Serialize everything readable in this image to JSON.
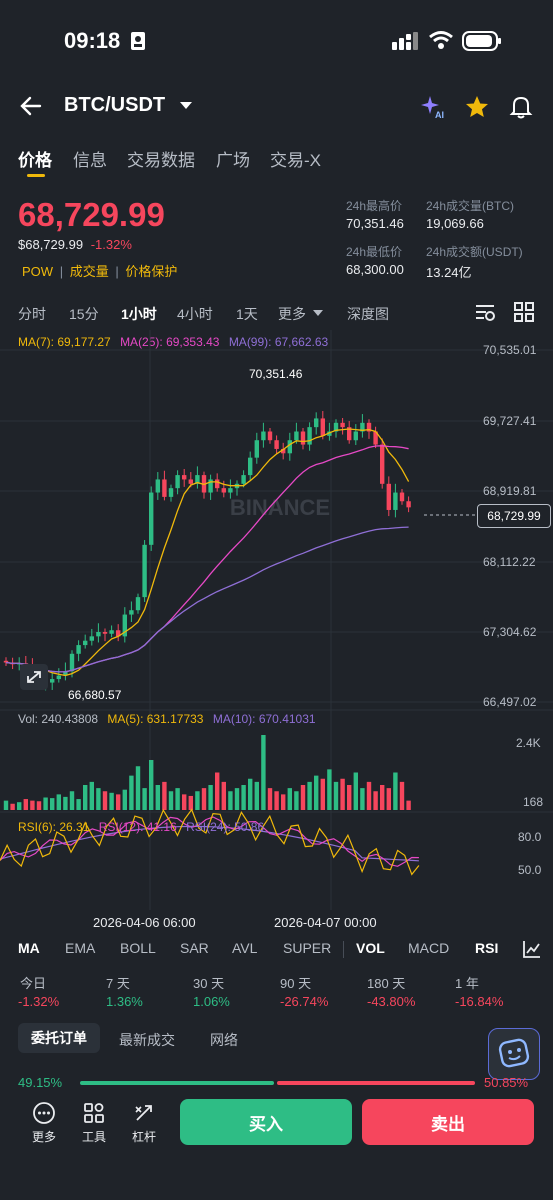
{
  "status": {
    "time": "09:18"
  },
  "header": {
    "pair": "BTC/USDT"
  },
  "tabs": [
    "价格",
    "信息",
    "交易数据",
    "广场",
    "交易-X"
  ],
  "price": {
    "last": "68,729.99",
    "usd": "$68,729.99",
    "change": "-1.32%",
    "tags": [
      "POW",
      "成交量",
      "价格保护"
    ]
  },
  "stats": {
    "high_label": "24h最高价",
    "high": "70,351.46",
    "vol_btc_label": "24h成交量(BTC)",
    "vol_btc": "19,069.66",
    "low_label": "24h最低价",
    "low": "68,300.00",
    "vol_usdt_label": "24h成交额(USDT)",
    "vol_usdt": "13.24亿"
  },
  "intervals": [
    "分时",
    "15分",
    "1小时",
    "4小时",
    "1天",
    "更多",
    "深度图"
  ],
  "chart": {
    "ma7": "MA(7): 69,177.27",
    "ma25": "MA(25): 69,353.43",
    "ma99": "MA(99): 67,662.63",
    "price_axis": [
      "70,535.01",
      "69,727.41",
      "68,919.81",
      "68,112.22",
      "67,304.62",
      "66,497.02"
    ],
    "current_price_tag": "68,729.99",
    "high_marker": "70,351.46",
    "low_marker": "66,680.57",
    "watermark": "BINANCE",
    "vol_label": "Vol: 240.43808",
    "vol_ma5": "MA(5): 631.17733",
    "vol_ma10": "MA(10): 670.41031",
    "vol_axis": [
      "2.4K",
      "168"
    ],
    "rsi6": "RSI(6): 26.31",
    "rsi12": "RSI(12): 41.16",
    "rsi24": "RSI(24): 50.86",
    "rsi_axis": [
      "80.0",
      "50.0"
    ],
    "time_axis": [
      "2026-04-06 06:00",
      "2026-04-07 00:00"
    ]
  },
  "indicators": [
    "MA",
    "EMA",
    "BOLL",
    "SAR",
    "AVL",
    "SUPER",
    "VOL",
    "MACD",
    "RSI"
  ],
  "performance": [
    {
      "label": "今日",
      "value": "-1.32%"
    },
    {
      "label": "7 天",
      "value": "1.36%"
    },
    {
      "label": "30 天",
      "value": "1.06%"
    },
    {
      "label": "90 天",
      "value": "-26.74%"
    },
    {
      "label": "180 天",
      "value": "-43.80%"
    },
    {
      "label": "1 年",
      "value": "-16.84%"
    }
  ],
  "orderbook_tabs": [
    "委托订单",
    "最新成交",
    "网络"
  ],
  "ratio": {
    "buy": "49.15%",
    "sell": "50.85%",
    "buy_fraction": 0.4915
  },
  "bottom": {
    "more": "更多",
    "tools": "工具",
    "leverage": "杠杆",
    "buy": "买入",
    "sell": "卖出"
  },
  "colors": {
    "up": "#2ebd85",
    "down": "#f6465d",
    "accent": "#f0b90b",
    "ma7": "#f0b90b",
    "ma25": "#e649c6",
    "ma99": "#8f6fd6"
  }
}
